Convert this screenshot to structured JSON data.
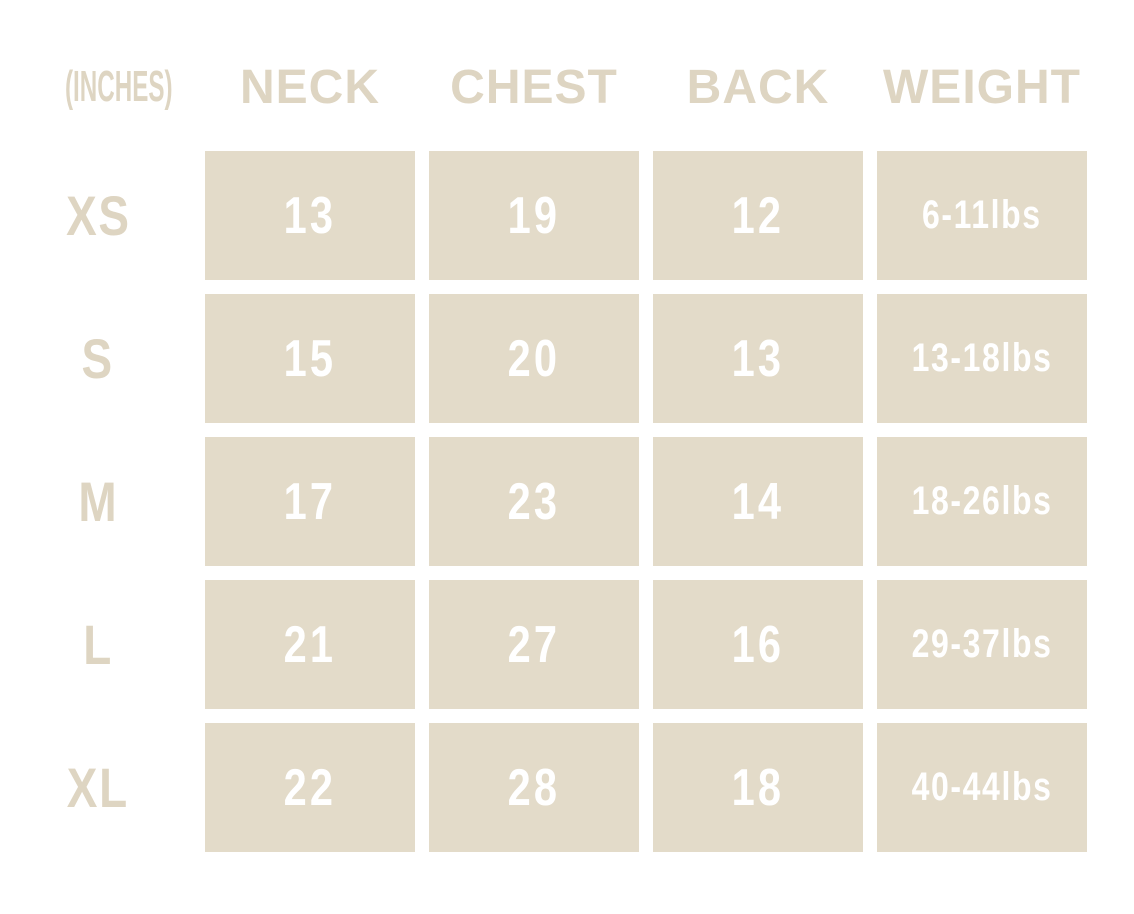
{
  "chart_data": {
    "type": "table",
    "unit_label": "(INCHES)",
    "columns": [
      "NECK",
      "CHEST",
      "BACK",
      "WEIGHT"
    ],
    "rows": [
      {
        "size": "XS",
        "values": [
          "13",
          "19",
          "12",
          "6-11lbs"
        ]
      },
      {
        "size": "S",
        "values": [
          "15",
          "20",
          "13",
          "13-18lbs"
        ]
      },
      {
        "size": "M",
        "values": [
          "17",
          "23",
          "14",
          "18-26lbs"
        ]
      },
      {
        "size": "L",
        "values": [
          "21",
          "27",
          "16",
          "29-37lbs"
        ]
      },
      {
        "size": "XL",
        "values": [
          "22",
          "28",
          "18",
          "40-44lbs"
        ]
      }
    ]
  },
  "colors": {
    "page_bg": "#ffffff",
    "cell_bg": "#e3dbc9",
    "heading_text": "#ded5c2",
    "cell_text": "#ffffff"
  }
}
